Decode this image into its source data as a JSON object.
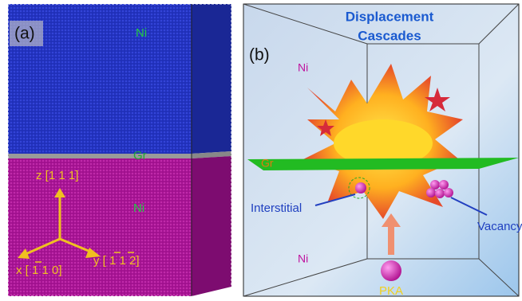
{
  "panel_a": {
    "label": "(a)",
    "top_layer": "Ni",
    "middle_layer": "Gr",
    "bottom_layer": "Ni",
    "axes": {
      "z": "z [1 1 1]",
      "x": "x [ 1 1 0]",
      "y": "y [ 1 1 2]"
    }
  },
  "panel_b": {
    "label": "(b)",
    "title_lines": [
      "Displacement",
      "Cascades"
    ],
    "top_layer": "Ni",
    "middle_layer": "Gr",
    "bottom_layer": "Ni",
    "interstitial": "Interstitial",
    "vacancy": "Vacancy",
    "pka": "PKA"
  }
}
